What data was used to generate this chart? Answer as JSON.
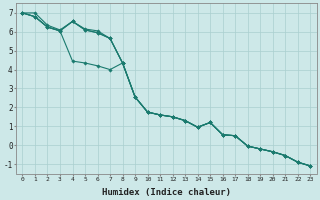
{
  "xlabel": "Humidex (Indice chaleur)",
  "xlim": [
    -0.5,
    23.5
  ],
  "ylim": [
    -1.5,
    7.5
  ],
  "yticks": [
    -1,
    0,
    1,
    2,
    3,
    4,
    5,
    6,
    7
  ],
  "xticks": [
    0,
    1,
    2,
    3,
    4,
    5,
    6,
    7,
    8,
    9,
    10,
    11,
    12,
    13,
    14,
    15,
    16,
    17,
    18,
    19,
    20,
    21,
    22,
    23
  ],
  "bg_color": "#cde8e8",
  "line_color": "#1a7a6e",
  "grid_color": "#aacfcf",
  "lines": [
    [
      7.0,
      7.0,
      6.35,
      6.1,
      6.55,
      6.15,
      6.05,
      5.65,
      4.35,
      2.55,
      1.75,
      1.6,
      1.5,
      1.3,
      0.95,
      1.2,
      0.55,
      0.5,
      -0.05,
      -0.2,
      -0.35,
      -0.55,
      -0.9,
      -1.1
    ],
    [
      7.0,
      6.8,
      6.25,
      6.05,
      4.45,
      4.35,
      4.2,
      4.0,
      4.35,
      2.55,
      1.75,
      1.6,
      1.5,
      1.3,
      0.95,
      1.2,
      0.55,
      0.5,
      -0.05,
      -0.2,
      -0.35,
      -0.55,
      -0.9,
      -1.1
    ],
    [
      7.0,
      6.8,
      6.25,
      6.05,
      6.55,
      6.1,
      5.95,
      5.65,
      4.35,
      2.55,
      1.75,
      1.6,
      1.5,
      1.3,
      0.95,
      1.2,
      0.55,
      0.5,
      -0.05,
      -0.2,
      -0.35,
      -0.55,
      -0.9,
      -1.1
    ],
    [
      7.0,
      6.8,
      6.25,
      6.05,
      6.55,
      6.1,
      5.95,
      5.65,
      4.35,
      2.55,
      1.75,
      1.6,
      1.5,
      1.3,
      0.95,
      1.2,
      0.55,
      0.5,
      -0.05,
      -0.2,
      -0.35,
      -0.55,
      -0.9,
      -1.1
    ]
  ]
}
